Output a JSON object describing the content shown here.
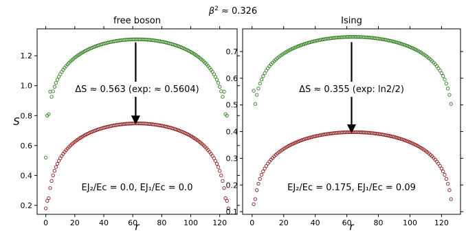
{
  "figure": {
    "suptitle": "β² ≈ 0.326"
  },
  "colors": {
    "top_series": "#2e7d1e",
    "bottom_series": "#8b1a1a",
    "arrow": "#000000"
  },
  "chart_data": [
    {
      "type": "scatter",
      "title": "free boson",
      "xlabel": "r",
      "ylabel": "S",
      "xlim": [
        -6,
        132
      ],
      "ylim": [
        0.14,
        1.38
      ],
      "xticks": [
        0,
        20,
        40,
        60,
        80,
        100,
        120
      ],
      "yticks": [
        0.2,
        0.4,
        0.6,
        0.8,
        1.0,
        1.2
      ],
      "yticklabels": [
        "0.2",
        "0.4",
        "0.6",
        "0.8",
        "1.0",
        "1.2"
      ],
      "grid": false,
      "marker": "open-circle",
      "L": 126,
      "annotation_delta": "ΔS ≈ 0.563 (exp: ≈ 0.5604)",
      "annotation_params": "EJ₂/Ec = 0.0, EJ₁/Ec = 0.0",
      "arrow": {
        "x": 62,
        "from_y": 1.29,
        "to_y": 0.77
      },
      "series": [
        {
          "coef": 0.1667,
          "max": 1.31,
          "x_min": 0,
          "x_max": 126,
          "values_at": {
            "1": 0.8,
            "3": 0.96,
            "63": 1.31
          }
        },
        {
          "coef": 0.1667,
          "max": 0.748,
          "x_min": 0,
          "x_max": 126,
          "values_at": {
            "0": 0.18,
            "1": 0.23,
            "63": 0.748
          }
        }
      ]
    },
    {
      "type": "scatter",
      "title": "Ising",
      "xlabel": "r",
      "ylabel": "",
      "xlim": [
        -6,
        132
      ],
      "ylim": [
        0.09,
        0.785
      ],
      "xticks": [
        0,
        20,
        40,
        60,
        80,
        100,
        120
      ],
      "yticks": [
        0.1,
        0.2,
        0.3,
        0.4,
        0.5,
        0.6,
        0.7
      ],
      "yticklabels": [
        "0.1",
        "0.2",
        "0.3",
        "0.4",
        "0.5",
        "0.6",
        "0.7"
      ],
      "grid": false,
      "marker": "open-circle",
      "L": 128,
      "annotation_delta": "ΔS ≈ 0.355 (exp: ln2/2)",
      "annotation_params": "EJ₂/Ec = 0.175, EJ₁/Ec = 0.09",
      "arrow": {
        "x": 63,
        "from_y": 0.735,
        "to_y": 0.41
      },
      "series": [
        {
          "coef": 0.0833,
          "max": 0.755,
          "x_min": 1,
          "x_max": 126,
          "values_at": {
            "1": 0.553,
            "64": 0.755
          }
        },
        {
          "coef": 0.0833,
          "max": 0.398,
          "x_min": 1,
          "x_max": 126,
          "values_at": {
            "1": 0.128,
            "64": 0.398
          }
        }
      ]
    }
  ]
}
